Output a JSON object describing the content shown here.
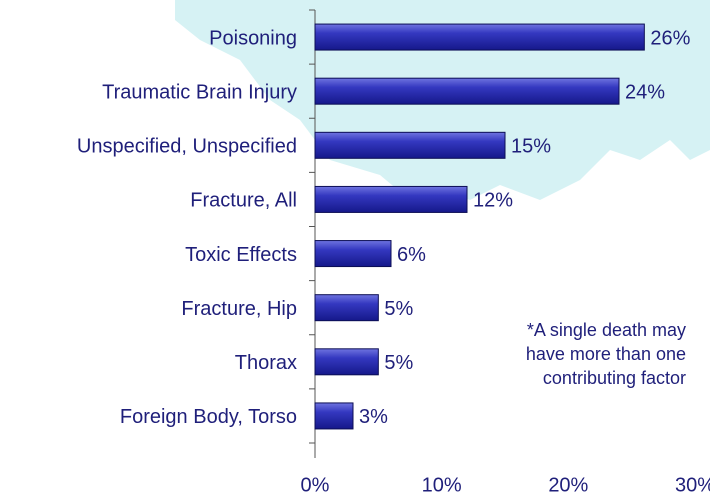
{
  "chart_data": {
    "type": "barh",
    "categories": [
      "Poisoning",
      "Traumatic Brain Injury",
      "Unspecified, Unspecified",
      "Fracture, All",
      "Toxic Effects",
      "Fracture, Hip",
      "Thorax",
      "Foreign Body, Torso"
    ],
    "values": [
      26,
      24,
      15,
      12,
      6,
      5,
      5,
      3
    ],
    "value_labels": [
      "26%",
      "24%",
      "15%",
      "12%",
      "6%",
      "5%",
      "5%",
      "3%"
    ],
    "color": "#2b2fb4",
    "xlim": [
      0,
      30
    ],
    "xticks": [
      {
        "value": 0,
        "label": "0%"
      },
      {
        "value": 10,
        "label": "10%"
      },
      {
        "value": 20,
        "label": "20%"
      },
      {
        "value": 30,
        "label": "30%"
      }
    ],
    "annotation": [
      "*A single death may",
      "have more than one",
      "contributing factor"
    ]
  }
}
